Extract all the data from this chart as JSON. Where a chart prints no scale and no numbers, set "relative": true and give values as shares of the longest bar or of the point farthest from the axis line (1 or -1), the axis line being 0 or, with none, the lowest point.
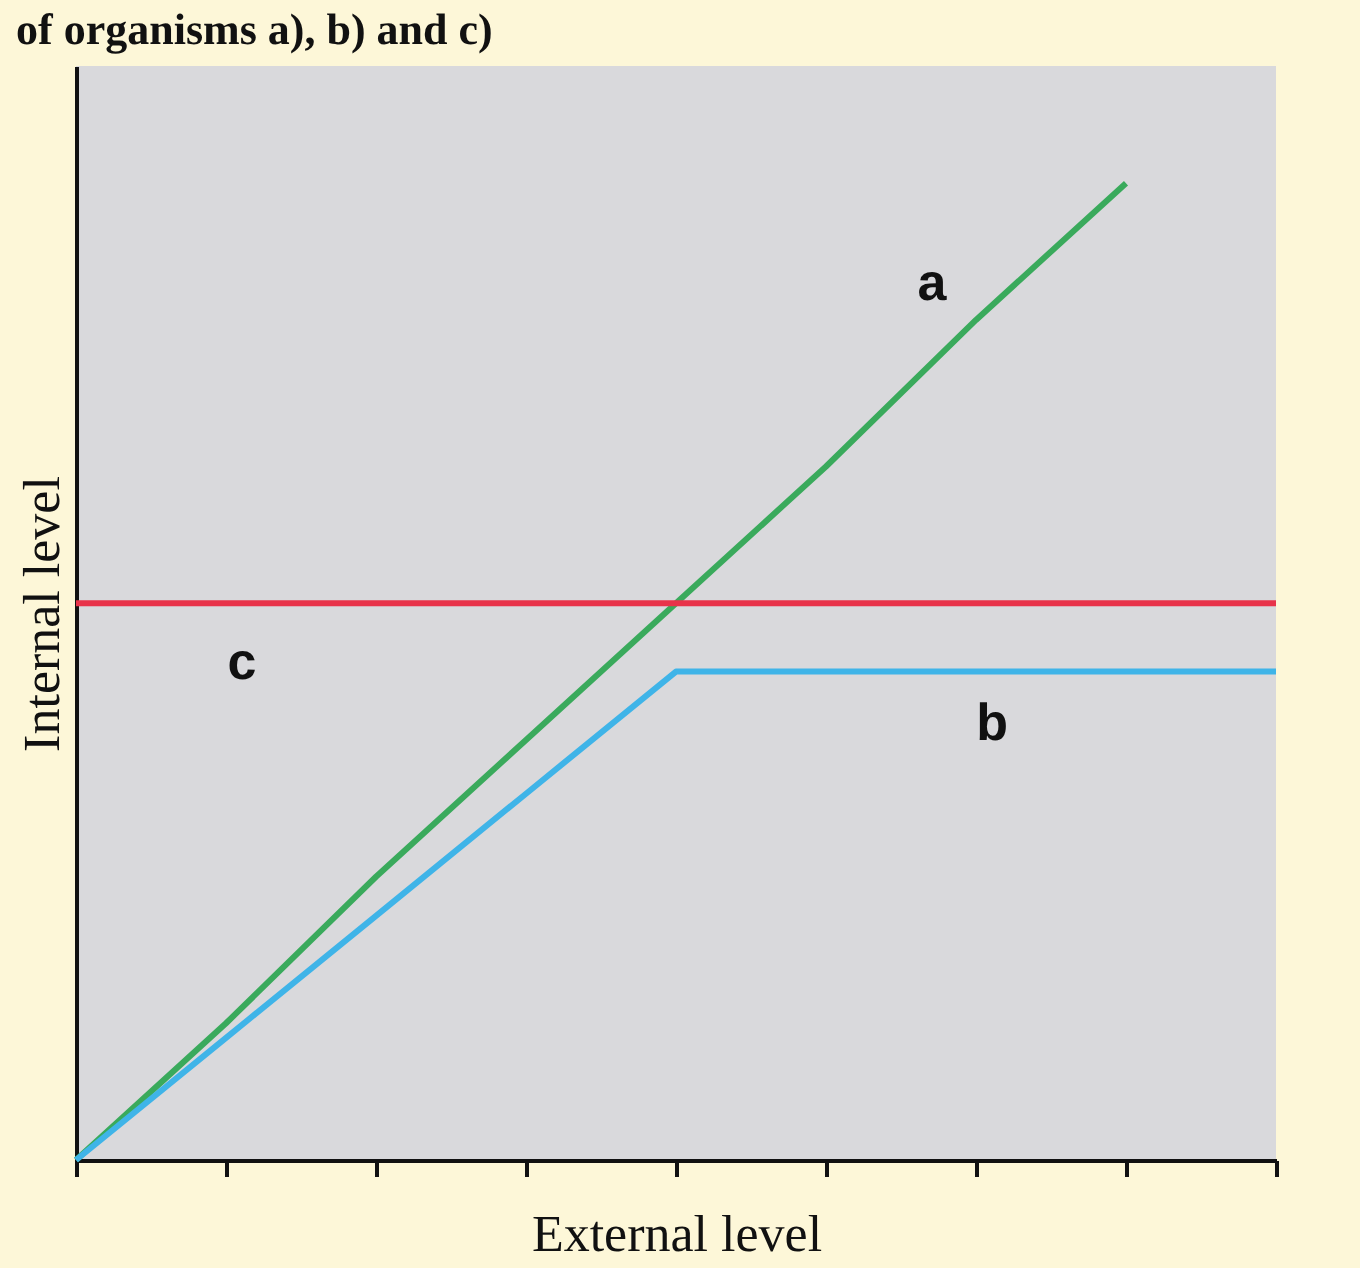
{
  "chart_data": {
    "type": "line",
    "title": "of organisms a), b) and c)",
    "xlabel": "External level",
    "ylabel": "Internal level",
    "relative": true,
    "categories": [
      null,
      null,
      null,
      null,
      null,
      null,
      null,
      null,
      null
    ],
    "grid": false,
    "legend": false,
    "marker": "none",
    "line_style": "solid",
    "series": [
      {
        "name": "a",
        "color": "#3aaa5c",
        "values": [
          0,
          0.14,
          0.29,
          0.43,
          0.57,
          0.71,
          0.86,
          1,
          null
        ]
      },
      {
        "name": "b",
        "color": "#3fb4e8",
        "values": [
          0,
          0.125,
          0.25,
          0.375,
          0.5,
          0.5,
          0.5,
          0.5,
          0.5
        ]
      },
      {
        "name": "c",
        "color": "#e8334a",
        "values": [
          0.57,
          0.57,
          0.57,
          0.57,
          0.57,
          0.57,
          0.57,
          0.57,
          0.57
        ]
      }
    ]
  }
}
